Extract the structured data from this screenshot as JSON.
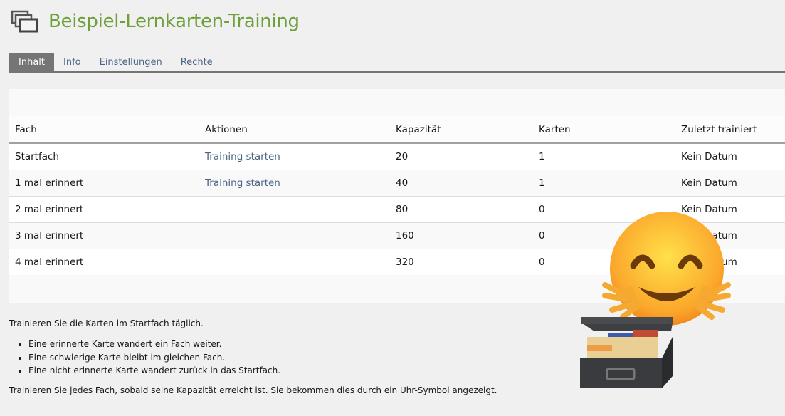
{
  "header": {
    "title": "Beispiel-Lernkarten-Training",
    "icon": "cards-stack-icon"
  },
  "tabs": [
    {
      "label": "Inhalt",
      "active": true
    },
    {
      "label": "Info"
    },
    {
      "label": "Einstellungen"
    },
    {
      "label": "Rechte"
    }
  ],
  "table": {
    "columns": [
      "Fach",
      "Aktionen",
      "Kapazität",
      "Karten",
      "Zuletzt trainiert"
    ],
    "rows": [
      {
        "fach": "Startfach",
        "aktion": "Training starten",
        "kapazitaet": "20",
        "karten": "1",
        "zuletzt": "Kein Datum"
      },
      {
        "fach": "1 mal erinnert",
        "aktion": "Training starten",
        "kapazitaet": "40",
        "karten": "1",
        "zuletzt": "Kein Datum"
      },
      {
        "fach": "2 mal erinnert",
        "aktion": "",
        "kapazitaet": "80",
        "karten": "0",
        "zuletzt": "Kein Datum"
      },
      {
        "fach": "3 mal erinnert",
        "aktion": "",
        "kapazitaet": "160",
        "karten": "0",
        "zuletzt": "Kein Datum"
      },
      {
        "fach": "4 mal erinnert",
        "aktion": "",
        "kapazitaet": "320",
        "karten": "0",
        "zuletzt": "Kein Datum"
      }
    ]
  },
  "instructions": {
    "intro": "Trainieren Sie die Karten im Startfach täglich.",
    "bullets": [
      "Eine erinnerte Karte wandert ein Fach weiter.",
      "Eine schwierige Karte bleibt im gleichen Fach.",
      "Eine nicht erinnerte Karte wandert zurück in das Startfach."
    ],
    "outro": "Trainieren Sie jedes Fach, sobald seine Kapazität erreicht ist. Sie bekommen dies durch ein Uhr-Symbol angezeigt."
  },
  "overlay": {
    "emojis": [
      "hugging-face-emoji",
      "card-file-box-emoji"
    ]
  }
}
